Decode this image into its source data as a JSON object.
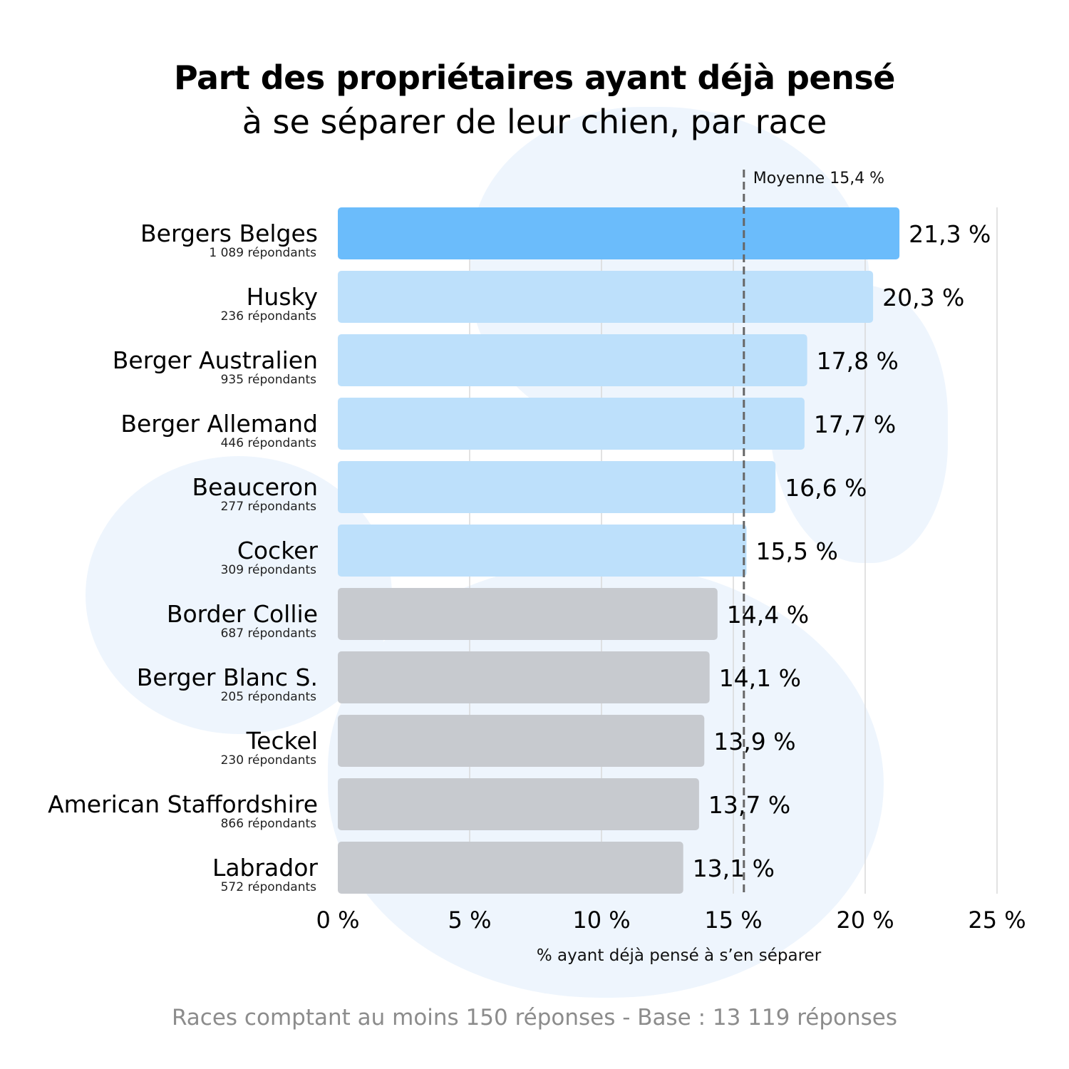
{
  "title": "Part des propriétaires ayant déjà pensé",
  "subtitle": "à se séparer de leur chien, par race",
  "footnote": "Races comptant au moins 150 réponses - Base : 13 119 réponses",
  "colors": {
    "highlight": "#6bbcfb",
    "above_average": "#bde0fb",
    "below_average": "#c7cacf",
    "gridline": "#d9d9d9",
    "reference_line": "#666666",
    "background_shape": "#eef5fd"
  },
  "chart_data": {
    "type": "bar",
    "orientation": "horizontal",
    "categories": [
      "Bergers Belges",
      "Husky",
      "Berger Australien",
      "Berger Allemand",
      "Beauceron",
      "Cocker",
      "Border Collie",
      "Berger Blanc S.",
      "Teckel",
      "American Staffordshire",
      "Labrador"
    ],
    "respondents": [
      "1 089 répondants",
      "236 répondants",
      "935 répondants",
      "446 répondants",
      "277 répondants",
      "309 répondants",
      "687 répondants",
      "205 répondants",
      "230 répondants",
      "866 répondants",
      "572 répondants"
    ],
    "values": [
      21.3,
      20.3,
      17.8,
      17.7,
      16.6,
      15.5,
      14.4,
      14.1,
      13.9,
      13.7,
      13.1
    ],
    "value_labels": [
      "21,3 %",
      "20,3 %",
      "17,8 %",
      "17,7 %",
      "16,6 %",
      "15,5 %",
      "14,4 %",
      "14,1 %",
      "13,9 %",
      "13,7 %",
      "13,1 %"
    ],
    "bar_groups": [
      "highlight",
      "above_average",
      "above_average",
      "above_average",
      "above_average",
      "above_average",
      "below_average",
      "below_average",
      "below_average",
      "below_average",
      "below_average"
    ],
    "xlim": [
      0,
      25
    ],
    "xticks": [
      0,
      5,
      10,
      15,
      20,
      25
    ],
    "xtick_labels": [
      "0 %",
      "5 %",
      "10 %",
      "15 %",
      "20 %",
      "25 %"
    ],
    "xlabel": "% ayant déjà pensé à s’en séparer",
    "reference_line": {
      "value": 15.4,
      "label": "Moyenne 15,4 %"
    },
    "grid": true
  }
}
